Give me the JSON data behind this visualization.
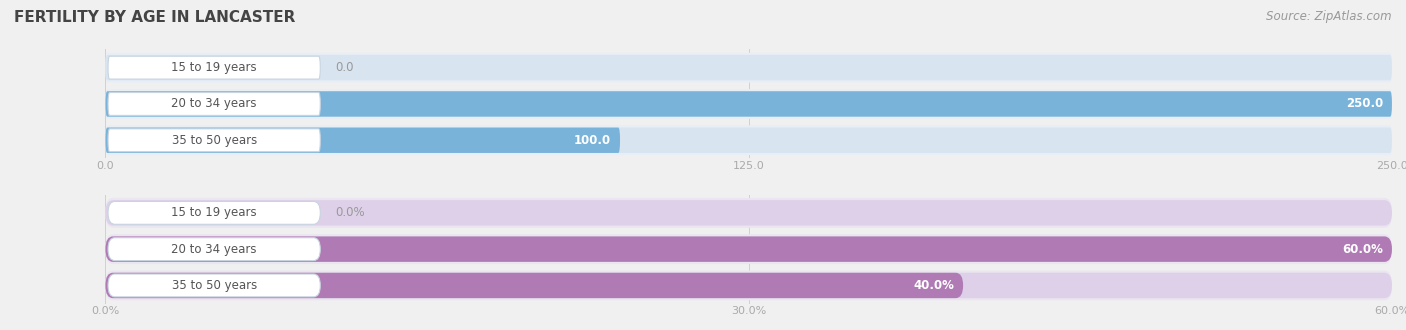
{
  "title": "FERTILITY BY AGE IN LANCASTER",
  "source": "Source: ZipAtlas.com",
  "top_chart": {
    "categories": [
      "15 to 19 years",
      "20 to 34 years",
      "35 to 50 years"
    ],
    "values": [
      0.0,
      250.0,
      100.0
    ],
    "bar_color": "#7ab3d9",
    "bar_bg_color": "#d8e4f0",
    "row_bg_color": "#e8eef5",
    "xlim": [
      0,
      250.0
    ],
    "xticks": [
      0.0,
      125.0,
      250.0
    ],
    "xtick_labels": [
      "0.0",
      "125.0",
      "250.0"
    ],
    "suffix": ""
  },
  "bottom_chart": {
    "categories": [
      "15 to 19 years",
      "20 to 34 years",
      "35 to 50 years"
    ],
    "values": [
      0.0,
      60.0,
      40.0
    ],
    "bar_color": "#b07ab5",
    "bar_bg_color": "#ddd0e8",
    "row_bg_color": "#eae5f0",
    "xlim": [
      0,
      60.0
    ],
    "xticks": [
      0.0,
      30.0,
      60.0
    ],
    "xtick_labels": [
      "0.0%",
      "30.0%",
      "60.0%"
    ],
    "suffix": "%"
  },
  "fig_bg": "#f0f0f0",
  "chart_bg": "#f0f0f0",
  "title_color": "#444444",
  "source_color": "#999999",
  "title_fontsize": 11,
  "source_fontsize": 8.5,
  "val_fontsize": 8.5,
  "cat_fontsize": 8.5,
  "tick_fontsize": 8,
  "label_box_color": "#ffffff",
  "label_box_border": "#c8d4e0",
  "label_text_color": "#555555",
  "zero_val_color": "#999999",
  "white_val_color": "#ffffff"
}
